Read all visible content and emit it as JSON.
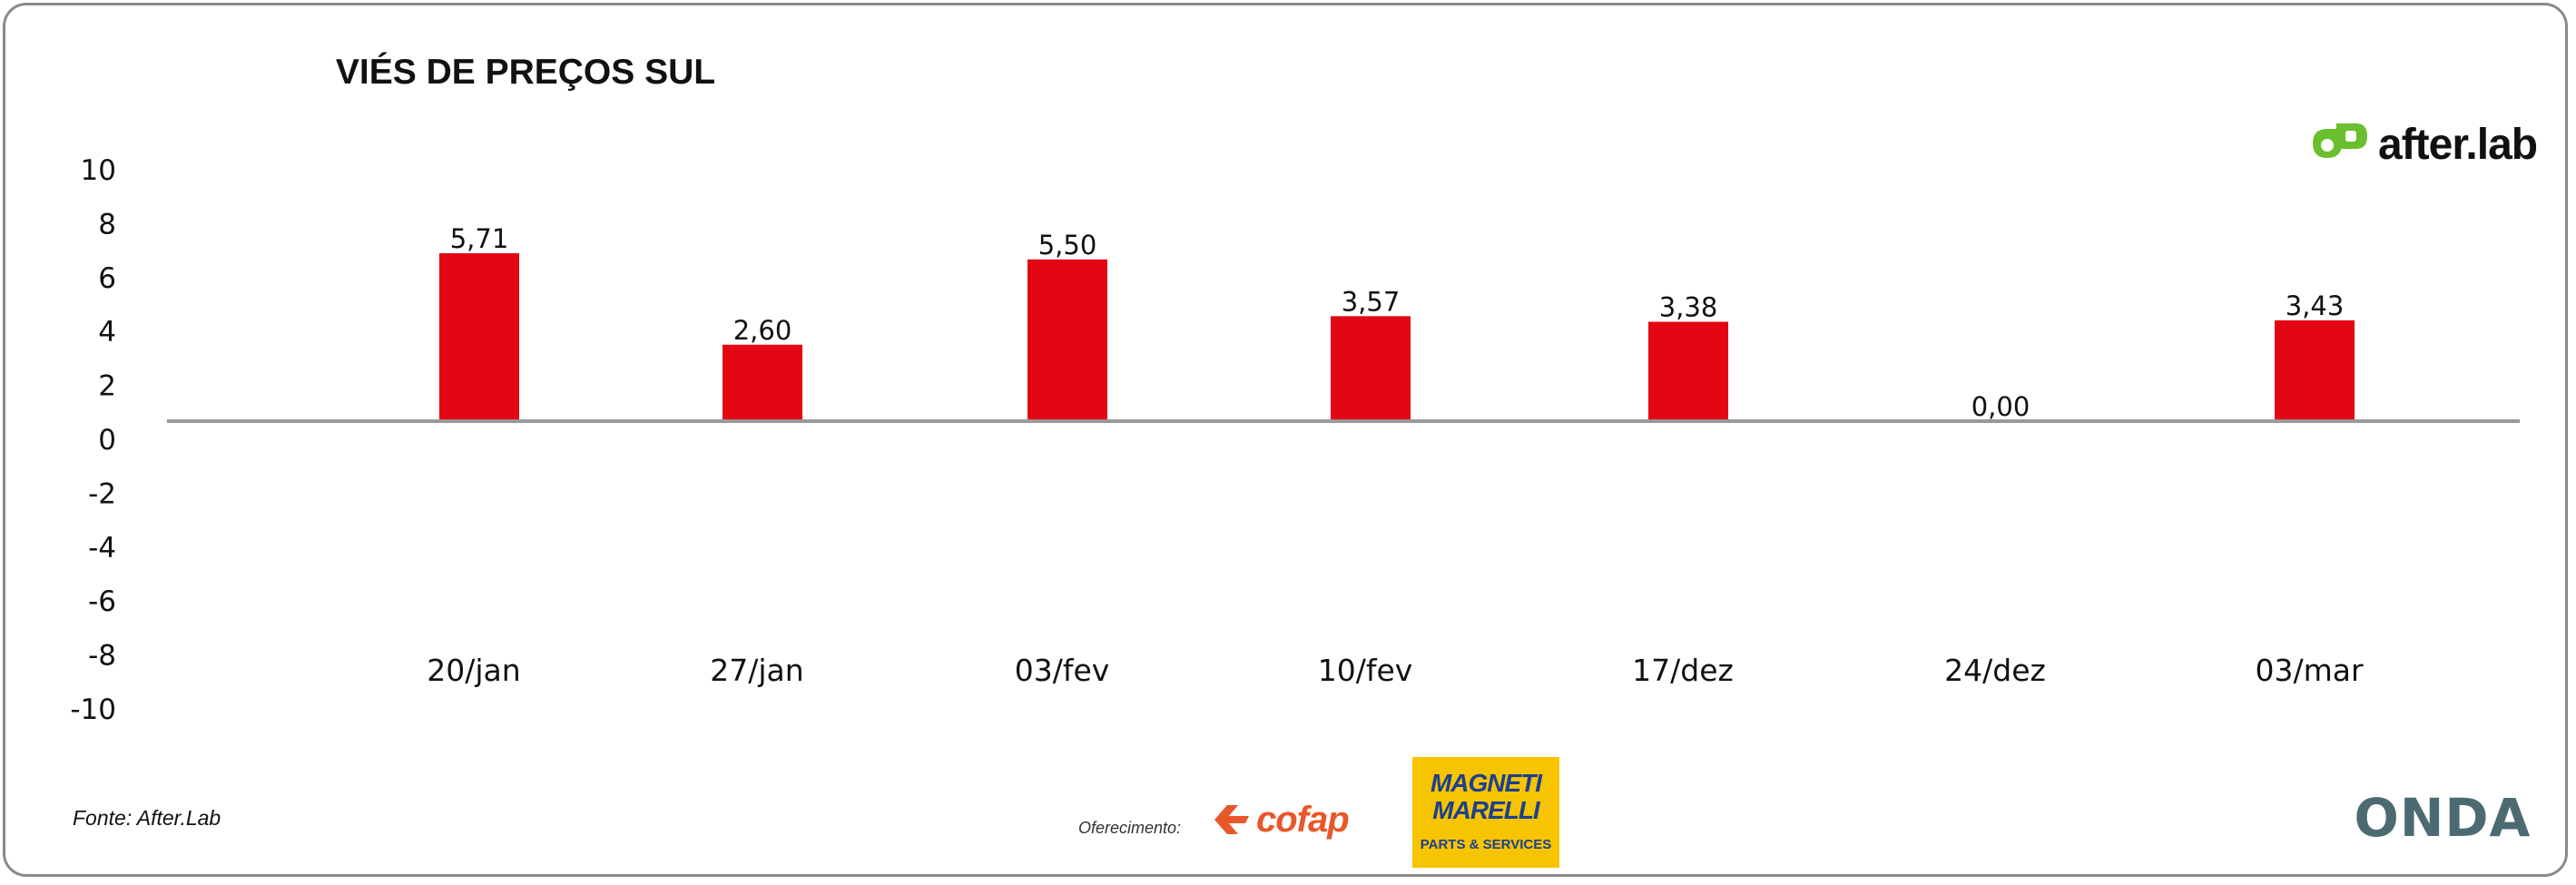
{
  "chart_data": {
    "type": "bar",
    "title": "VIÉS DE PREÇOS SUL",
    "categories": [
      "20/jan",
      "27/jan",
      "03/fev",
      "10/fev",
      "17/dez",
      "24/dez",
      "03/mar"
    ],
    "values": [
      5.71,
      2.6,
      5.5,
      3.57,
      3.38,
      0.0,
      3.43
    ],
    "data_labels": [
      "5,71",
      "2,60",
      "5,50",
      "3,57",
      "3,38",
      "0,00",
      "3,43"
    ],
    "y_ticks": [
      10,
      8,
      6,
      4,
      2,
      0,
      -2,
      -4,
      -6,
      -8,
      -10
    ],
    "ylim": [
      -10,
      10
    ],
    "xlabel": "",
    "ylabel": "",
    "grid": false,
    "legend": "none",
    "bar_color": "#e30613",
    "axis_color": "#999999"
  },
  "footer": {
    "source": "Fonte: After.Lab",
    "offered_by": "Oferecimento:",
    "sponsors": {
      "cofap": "cofap",
      "magneti_name": "MAGNETI MARELLI",
      "magneti_sub": "PARTS & SERVICES"
    },
    "onda": "ONDA"
  },
  "brand": {
    "name": "after.lab",
    "color": "#6abf2e"
  }
}
